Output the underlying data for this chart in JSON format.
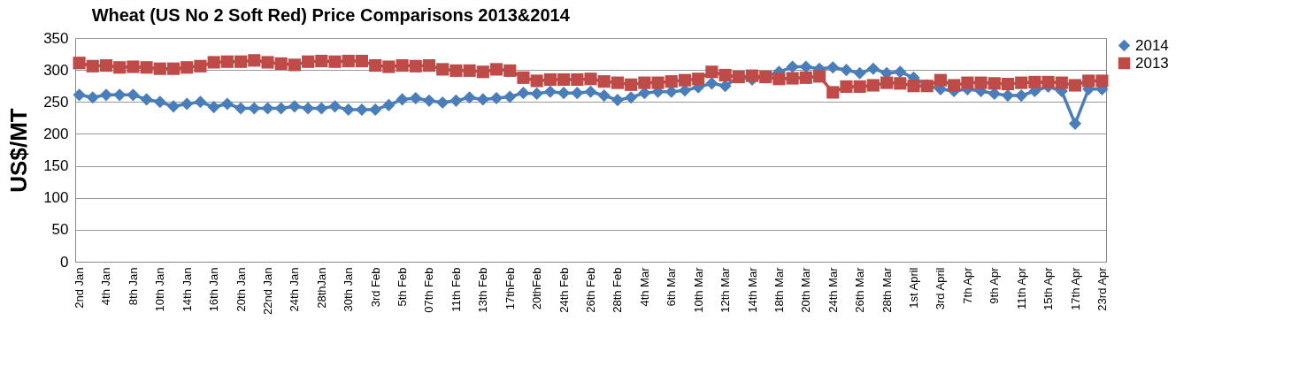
{
  "chart_data": {
    "type": "line",
    "title": "Wheat (US No 2 Soft Red) Price Comparisons 2013&2014",
    "ylabel": "US$/MT",
    "categories": [
      "2nd Jan",
      null,
      "4th Jan",
      null,
      "8th Jan",
      null,
      "10th Jan",
      null,
      "14th Jan",
      null,
      "16th Jan",
      null,
      "20th Jan",
      null,
      "22nd Jan",
      null,
      "24th Jan",
      null,
      "28thJan",
      null,
      "30th Jan",
      null,
      "3rd Feb",
      null,
      "5th Feb",
      null,
      "07th Feb",
      null,
      "11th Feb",
      null,
      "13th Feb",
      null,
      "17thFeb",
      null,
      "20thFeb",
      null,
      "24th Feb",
      null,
      "26th Feb",
      null,
      "28th Feb",
      null,
      "4th Mar",
      null,
      "6th Mar",
      null,
      "10th Mar",
      null,
      "12th Mar",
      null,
      "14th Mar",
      null,
      "18th Mar",
      null,
      "20th Mar",
      null,
      "24th Mar",
      null,
      "26th Mar",
      null,
      "28th Mar",
      null,
      "1st April",
      null,
      "3rd April",
      null,
      "7th Apr",
      null,
      "9th Apr",
      null,
      "11th Apr",
      null,
      "15th Apr",
      null,
      "17th Apr",
      null,
      "23rd Apr"
    ],
    "series": [
      {
        "name": "2014",
        "color": "#4a7ebb",
        "marker": "diamond",
        "values": [
          261,
          257,
          261,
          261,
          261,
          254,
          250,
          243,
          247,
          250,
          242,
          247,
          240,
          240,
          240,
          240,
          243,
          240,
          240,
          243,
          238,
          238,
          238,
          245,
          254,
          256,
          252,
          249,
          252,
          257,
          254,
          256,
          258,
          264,
          263,
          266,
          264,
          264,
          266,
          260,
          253,
          257,
          264,
          266,
          266,
          268,
          273,
          279,
          275,
          289,
          285,
          290,
          297,
          305,
          305,
          302,
          304,
          300,
          295,
          302,
          295,
          297,
          288,
          276,
          270,
          267,
          270,
          267,
          263,
          260,
          260,
          267,
          274,
          267,
          216,
          270,
          270
        ]
      },
      {
        "name": "2013",
        "color": "#be4b48",
        "marker": "square",
        "values": [
          311,
          306,
          307,
          304,
          305,
          304,
          302,
          302,
          304,
          306,
          312,
          313,
          313,
          315,
          312,
          310,
          308,
          313,
          314,
          313,
          314,
          314,
          307,
          305,
          307,
          306,
          307,
          301,
          299,
          299,
          297,
          301,
          299,
          288,
          283,
          285,
          285,
          285,
          286,
          282,
          280,
          277,
          280,
          280,
          282,
          284,
          286,
          297,
          292,
          289,
          291,
          289,
          286,
          287,
          288,
          290,
          265,
          274,
          274,
          276,
          280,
          279,
          275,
          275,
          284,
          276,
          280,
          280,
          279,
          278,
          280,
          281,
          281,
          280,
          276,
          283,
          283
        ]
      }
    ],
    "ylim": [
      0,
      350
    ],
    "yticks": [
      0,
      50,
      100,
      150,
      200,
      250,
      300,
      350
    ],
    "grid": "y",
    "legend": "right"
  }
}
